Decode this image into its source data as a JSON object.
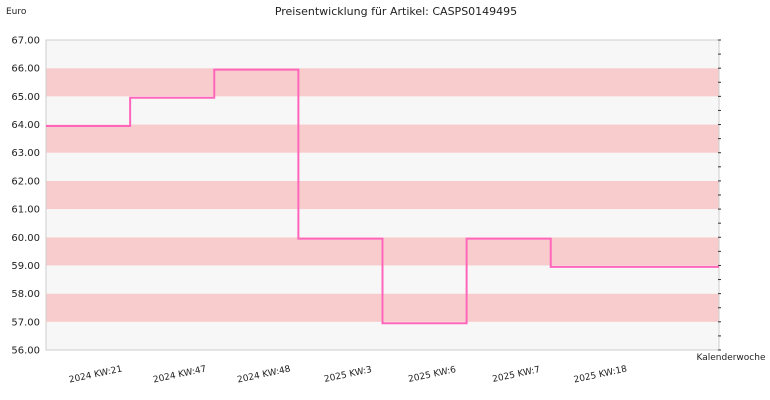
{
  "chart_data": {
    "type": "line",
    "title": "Preisentwicklung für Artikel: CASPS0149495",
    "ylabel": "Euro",
    "xlabel": "Kalenderwoche",
    "ylim": [
      56.0,
      67.0
    ],
    "yticks": [
      "56.00",
      "57.00",
      "58.00",
      "59.00",
      "60.00",
      "61.00",
      "62.00",
      "63.00",
      "64.00",
      "65.00",
      "66.00",
      "67.00"
    ],
    "categories": [
      "2024 KW:21",
      "2024 KW:47",
      "2024 KW:48",
      "2025 KW:3",
      "2025 KW:6",
      "2025 KW:7",
      "2025 KW:18"
    ],
    "series": [
      {
        "values": [
          63.95,
          64.95,
          65.95,
          59.95,
          56.95,
          59.95,
          58.95
        ]
      }
    ],
    "step": true,
    "grid": "horizontal bands",
    "colors": {
      "line": "#ff66bb",
      "band_dark": "#f8cccc",
      "band_light": "#f7f7f7",
      "plot_border": "#cccccc"
    }
  }
}
